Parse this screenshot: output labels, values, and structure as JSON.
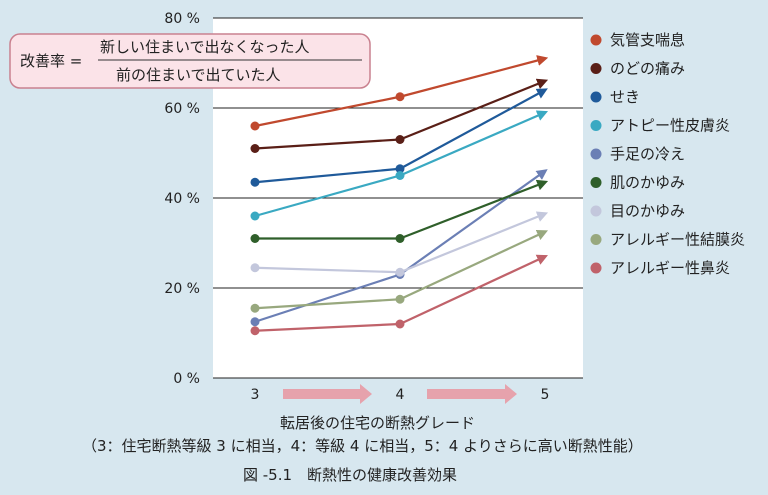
{
  "chart_data": {
    "type": "line",
    "ylabel_unit": "%",
    "ylim": [
      0,
      80
    ],
    "yticks": [
      {
        "value": 0,
        "label": "0 %"
      },
      {
        "value": 20,
        "label": "20 %"
      },
      {
        "value": 40,
        "label": "40 %"
      },
      {
        "value": 60,
        "label": "60 %"
      },
      {
        "value": 80,
        "label": "80 %"
      }
    ],
    "x": [
      3,
      4,
      5
    ],
    "xtick_labels": [
      "3",
      "4",
      "5"
    ],
    "xlabel": "転居後の住宅の断熱グレード",
    "xlabel_note": "（3：住宅断熱等級 3 に相当，4：等級 4 に相当，5：4 よりさらに高い断熱性能）",
    "caption": "図 -5.1　断熱性の健康改善効果",
    "formula": {
      "lhs": "改善率 =",
      "numerator": "新しい住まいで出なくなった人",
      "denominator": "前の住まいで出ていた人"
    },
    "legend_position": "right",
    "grid": "horizontal",
    "series": [
      {
        "name": "気管支喘息",
        "color": "#c0492e",
        "values": [
          56,
          62.5,
          71
        ]
      },
      {
        "name": "のどの痛み",
        "color": "#5a1f17",
        "values": [
          51,
          53,
          66
        ]
      },
      {
        "name": "せき",
        "color": "#1f5a9a",
        "values": [
          43.5,
          46.5,
          64
        ]
      },
      {
        "name": "アトピー性皮膚炎",
        "color": "#3aa9c2",
        "values": [
          36,
          45,
          59
        ]
      },
      {
        "name": "手足の冷え",
        "color": "#6b7fb5",
        "values": [
          12.5,
          23,
          46
        ]
      },
      {
        "name": "肌のかゆみ",
        "color": "#2f5f2a",
        "values": [
          31,
          31,
          43.5
        ]
      },
      {
        "name": "目のかゆみ",
        "color": "#c3c7dc",
        "values": [
          24.5,
          23.5,
          36.5
        ]
      },
      {
        "name": "アレルギー性結膜炎",
        "color": "#98a87e",
        "values": [
          15.5,
          17.5,
          32.5
        ]
      },
      {
        "name": "アレルギー性鼻炎",
        "color": "#c0626a",
        "values": [
          10.5,
          12,
          27
        ]
      }
    ]
  }
}
